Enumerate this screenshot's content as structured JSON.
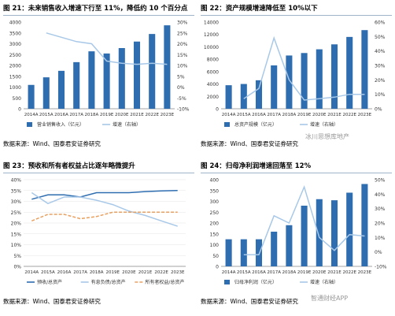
{
  "charts": [
    {
      "title": "图 21：未来销售收入增速下行至 11%，降低约 10 个百分点",
      "source": "数据来源：Wind、国泰君安证券研究",
      "chart_data": {
        "type": "bar",
        "categories": [
          "2014A",
          "2015A",
          "2016A",
          "2017A",
          "2018A",
          "2019E",
          "2020E",
          "2021E",
          "2022E",
          "2023E"
        ],
        "series": [
          {
            "name": "营业销售收入（亿元）",
            "type": "bar",
            "axis": "left",
            "color": "#2e6db0",
            "values": [
              1100,
              1450,
              1750,
              2150,
              2650,
              2550,
              2800,
              3100,
              3450,
              3850
            ]
          },
          {
            "name": "增速（右轴）",
            "type": "line",
            "axis": "right",
            "color": "#a8c8e8",
            "values": [
              null,
              25,
              23,
              21,
              20,
              12,
              11,
              10.5,
              11,
              10.5
            ]
          }
        ],
        "yleft": {
          "min": 0,
          "max": 4000,
          "step": 500
        },
        "yright": {
          "min": -10,
          "max": 30,
          "step": 5,
          "suffix": "%"
        },
        "legend": "bottom"
      }
    },
    {
      "title": "图 22：资产规模增速降低至 10%以下",
      "source": "数据来源：Wind、国泰君安证券研究",
      "chart_data": {
        "type": "bar",
        "categories": [
          "2014A",
          "2015A",
          "2016A",
          "2017A",
          "2018A",
          "2019E",
          "2020E",
          "2021E",
          "2022E",
          "2023E"
        ],
        "series": [
          {
            "name": "总资产规模（亿元）",
            "type": "bar",
            "axis": "left",
            "color": "#2e6db0",
            "values": [
              3800,
              4000,
              4600,
              7000,
              8600,
              9000,
              9600,
              10400,
              11600,
              12700
            ]
          },
          {
            "name": "增速（右轴）",
            "type": "line",
            "axis": "right",
            "color": "#a8c8e8",
            "values": [
              null,
              7,
              14,
              49,
              20,
              6,
              7,
              8,
              10,
              10
            ]
          }
        ],
        "yleft": {
          "min": 0,
          "max": 14000,
          "step": 2000
        },
        "yright": {
          "min": 0,
          "max": 60,
          "step": 10,
          "suffix": "%"
        },
        "legend": "bottom"
      }
    },
    {
      "title": "图 23：预收和所有者权益占比逐年略微提升",
      "source": "数据来源：Wind、国泰君安证券研究",
      "chart_data": {
        "type": "line",
        "categories": [
          "2014A",
          "2015A",
          "2016A",
          "2017A",
          "2018A",
          "2019E",
          "2020E",
          "2021E",
          "2022E",
          "2023E"
        ],
        "series": [
          {
            "name": "预收/总资产",
            "color": "#2e6db0",
            "dash": "",
            "values": [
              31,
              33,
              33,
              32,
              34,
              34,
              34,
              34.5,
              34.8,
              35
            ]
          },
          {
            "name": "有息负债/总资产",
            "color": "#a8c8e8",
            "dash": "",
            "values": [
              34,
              29,
              32,
              32,
              30.5,
              28.5,
              25.5,
              23.5,
              21,
              18.5
            ]
          },
          {
            "name": "所有者权益/总资产",
            "color": "#e8a060",
            "dash": "4,2",
            "values": [
              21,
              24,
              24,
              22,
              23,
              25,
              25,
              25,
              25,
              25
            ]
          }
        ],
        "yleft": {
          "min": 0,
          "max": 40,
          "step": 5,
          "suffix": "%"
        },
        "legend": "bottom"
      }
    },
    {
      "title": "图 24：归母净利润增速回落至 12%",
      "source": "数据来源：Wind、国泰君安证券研究",
      "chart_data": {
        "type": "bar",
        "categories": [
          "2014A",
          "2015A",
          "2016A",
          "2017A",
          "2018A",
          "2019E",
          "2020E",
          "2021E",
          "2022E",
          "2023E"
        ],
        "series": [
          {
            "name": "归母净利润（亿元）",
            "type": "bar",
            "axis": "left",
            "color": "#2e6db0",
            "values": [
              125,
              125,
              125,
              160,
              190,
              280,
              310,
              305,
              340,
              380
            ]
          },
          {
            "name": "增速（右轴）",
            "type": "line",
            "axis": "right",
            "color": "#a8c8e8",
            "values": [
              null,
              -2,
              -2,
              25,
              20,
              45,
              10,
              1,
              12,
              11
            ]
          }
        ],
        "yleft": {
          "min": 0,
          "max": 400,
          "step": 50
        },
        "yright": {
          "min": -10,
          "max": 50,
          "step": 10,
          "suffix": "%"
        },
        "legend": "bottom"
      }
    }
  ],
  "watermarks": [
    "冰川思想库地产",
    "智通财经APP"
  ]
}
